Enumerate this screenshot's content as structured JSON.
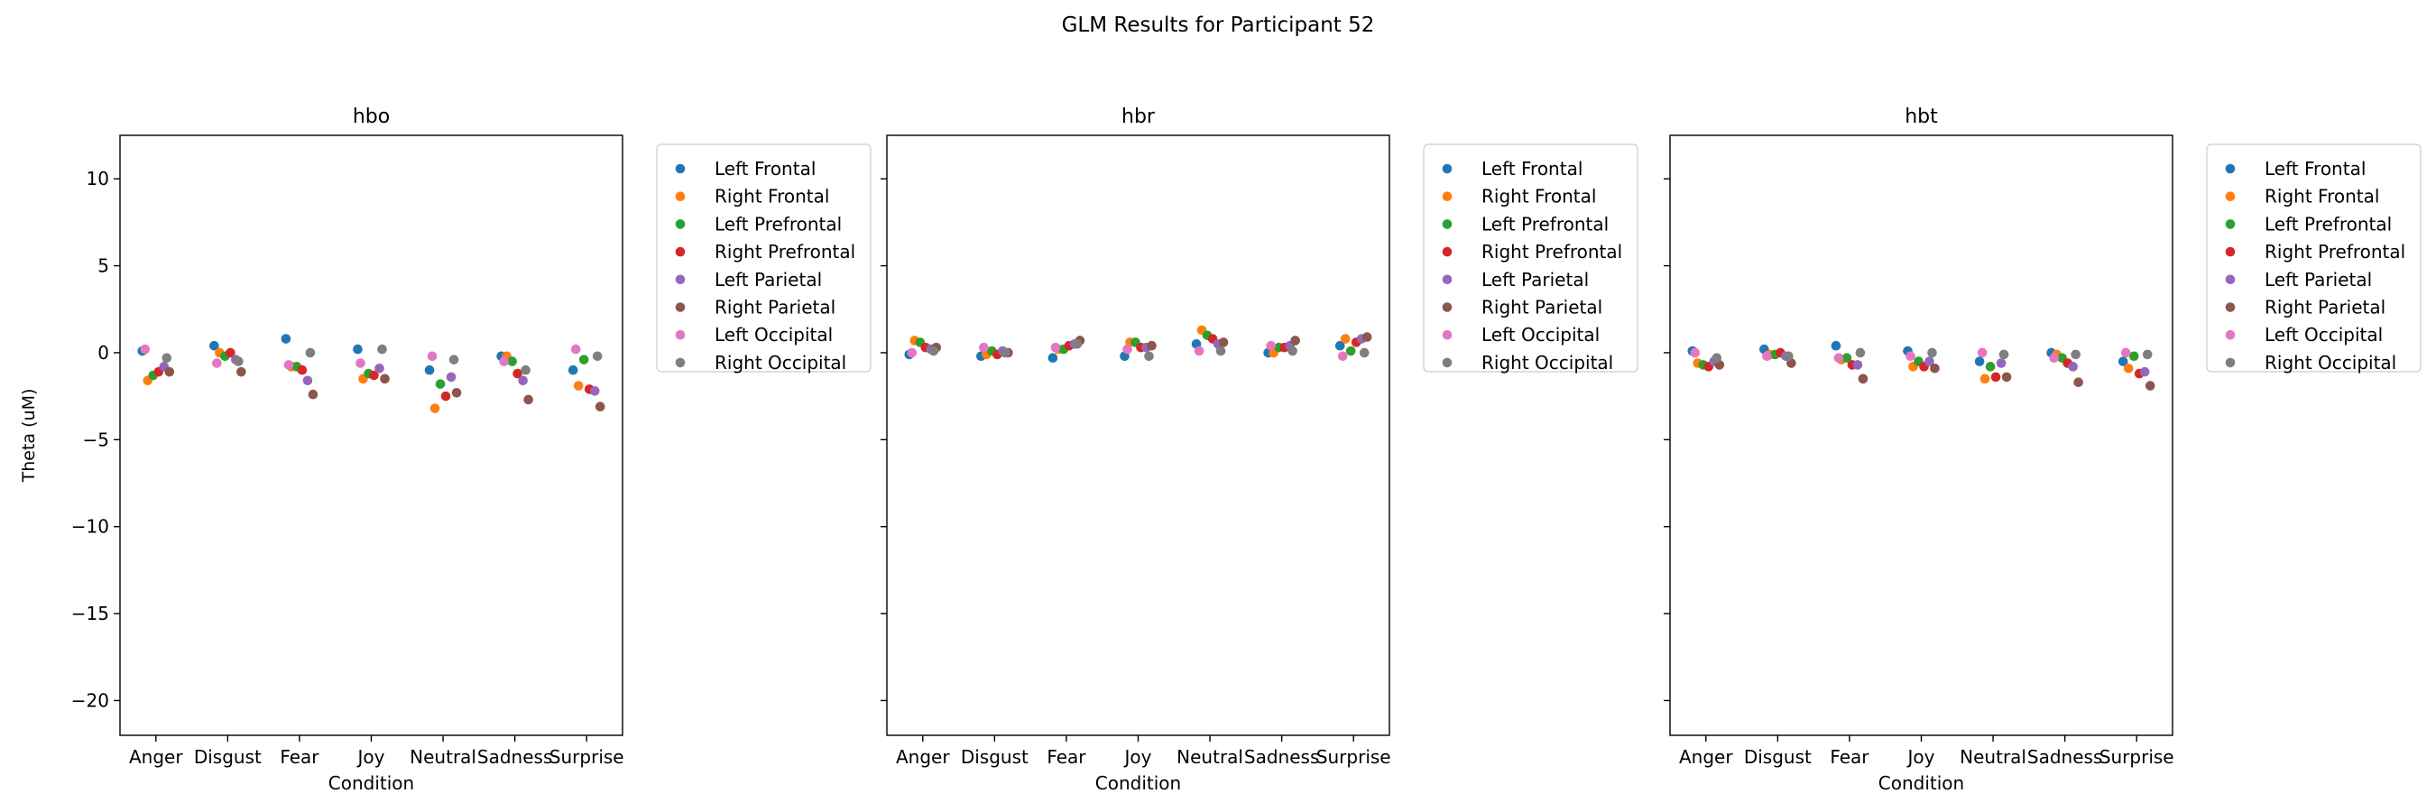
{
  "figure_title": "GLM Results for Participant 52",
  "legend_entries": [
    "Left Frontal",
    "Right Frontal",
    "Left Prefrontal",
    "Right Prefrontal",
    "Left Parietal",
    "Right Parietal",
    "Left Occipital",
    "Right Occipital"
  ],
  "colors": [
    "#1f77b4",
    "#ff7f0e",
    "#2ca02c",
    "#d62728",
    "#9467bd",
    "#8c564b",
    "#e377c2",
    "#7f7f7f"
  ],
  "chart_data": [
    {
      "type": "scatter",
      "title": "hbo",
      "xlabel": "Condition",
      "ylabel": "Theta (uM)",
      "categories": [
        "Anger",
        "Disgust",
        "Fear",
        "Joy",
        "Neutral",
        "Sadness",
        "Surprise"
      ],
      "ylim": [
        -22,
        12.5
      ],
      "yticks": [
        10,
        5,
        0,
        -5,
        -10,
        -15,
        -20
      ],
      "legend_position": "outside-right",
      "series": [
        {
          "name": "Left Frontal",
          "values": [
            0.1,
            0.4,
            0.8,
            0.2,
            -1.0,
            -0.2,
            -1.0
          ]
        },
        {
          "name": "Right Frontal",
          "values": [
            -1.6,
            0.0,
            -0.8,
            -1.5,
            -3.2,
            -0.2,
            -1.9
          ]
        },
        {
          "name": "Left Prefrontal",
          "values": [
            -1.3,
            -0.2,
            -0.8,
            -1.2,
            -1.8,
            -0.5,
            -0.4
          ]
        },
        {
          "name": "Right Prefrontal",
          "values": [
            -1.1,
            0.0,
            -1.0,
            -1.3,
            -2.5,
            -1.2,
            -2.1
          ]
        },
        {
          "name": "Left Parietal",
          "values": [
            -0.8,
            -0.4,
            -1.6,
            -0.9,
            -1.4,
            -1.6,
            -2.2
          ]
        },
        {
          "name": "Right Parietal",
          "values": [
            -1.1,
            -1.1,
            -2.4,
            -1.5,
            -2.3,
            -2.7,
            -3.1
          ]
        },
        {
          "name": "Left Occipital",
          "values": [
            0.2,
            -0.6,
            -0.7,
            -0.6,
            -0.2,
            -0.5,
            0.2
          ]
        },
        {
          "name": "Right Occipital",
          "values": [
            -0.3,
            -0.5,
            0.0,
            0.2,
            -0.4,
            -1.0,
            -0.2
          ]
        }
      ]
    },
    {
      "type": "scatter",
      "title": "hbr",
      "xlabel": "Condition",
      "ylabel": "",
      "categories": [
        "Anger",
        "Disgust",
        "Fear",
        "Joy",
        "Neutral",
        "Sadness",
        "Surprise"
      ],
      "ylim": [
        -22,
        12.5
      ],
      "yticks": [
        10,
        5,
        0,
        -5,
        -10,
        -15,
        -20
      ],
      "legend_position": "outside-right",
      "series": [
        {
          "name": "Left Frontal",
          "values": [
            -0.1,
            -0.2,
            -0.3,
            -0.2,
            0.5,
            0.0,
            0.4
          ]
        },
        {
          "name": "Right Frontal",
          "values": [
            0.7,
            -0.1,
            0.2,
            0.6,
            1.3,
            0.0,
            0.8
          ]
        },
        {
          "name": "Left Prefrontal",
          "values": [
            0.6,
            0.1,
            0.2,
            0.6,
            1.0,
            0.3,
            0.1
          ]
        },
        {
          "name": "Right Prefrontal",
          "values": [
            0.3,
            -0.1,
            0.4,
            0.3,
            0.8,
            0.3,
            0.6
          ]
        },
        {
          "name": "Left Parietal",
          "values": [
            0.2,
            0.1,
            0.5,
            0.3,
            0.5,
            0.4,
            0.8
          ]
        },
        {
          "name": "Right Parietal",
          "values": [
            0.3,
            0.0,
            0.7,
            0.4,
            0.6,
            0.7,
            0.9
          ]
        },
        {
          "name": "Left Occipital",
          "values": [
            0.0,
            0.3,
            0.3,
            0.2,
            0.1,
            0.4,
            -0.2
          ]
        },
        {
          "name": "Right Occipital",
          "values": [
            0.1,
            0.0,
            0.5,
            -0.2,
            0.1,
            0.1,
            0.0
          ]
        }
      ]
    },
    {
      "type": "scatter",
      "title": "hbt",
      "xlabel": "Condition",
      "ylabel": "",
      "categories": [
        "Anger",
        "Disgust",
        "Fear",
        "Joy",
        "Neutral",
        "Sadness",
        "Surprise"
      ],
      "ylim": [
        -22,
        12.5
      ],
      "yticks": [
        10,
        5,
        0,
        -5,
        -10,
        -15,
        -20
      ],
      "legend_position": "outside-right",
      "series": [
        {
          "name": "Left Frontal",
          "values": [
            0.1,
            0.2,
            0.4,
            0.1,
            -0.5,
            0.0,
            -0.5
          ]
        },
        {
          "name": "Right Frontal",
          "values": [
            -0.6,
            -0.1,
            -0.4,
            -0.8,
            -1.5,
            -0.1,
            -0.9
          ]
        },
        {
          "name": "Left Prefrontal",
          "values": [
            -0.7,
            -0.1,
            -0.3,
            -0.5,
            -0.8,
            -0.3,
            -0.2
          ]
        },
        {
          "name": "Right Prefrontal",
          "values": [
            -0.8,
            0.0,
            -0.7,
            -0.8,
            -1.4,
            -0.6,
            -1.2
          ]
        },
        {
          "name": "Left Parietal",
          "values": [
            -0.5,
            -0.2,
            -0.7,
            -0.5,
            -0.6,
            -0.8,
            -1.1
          ]
        },
        {
          "name": "Right Parietal",
          "values": [
            -0.7,
            -0.6,
            -1.5,
            -0.9,
            -1.4,
            -1.7,
            -1.9
          ]
        },
        {
          "name": "Left Occipital",
          "values": [
            0.0,
            -0.2,
            -0.3,
            -0.2,
            0.0,
            -0.3,
            0.0
          ]
        },
        {
          "name": "Right Occipital",
          "values": [
            -0.3,
            -0.2,
            0.0,
            0.0,
            -0.1,
            -0.1,
            -0.1
          ]
        }
      ]
    }
  ]
}
